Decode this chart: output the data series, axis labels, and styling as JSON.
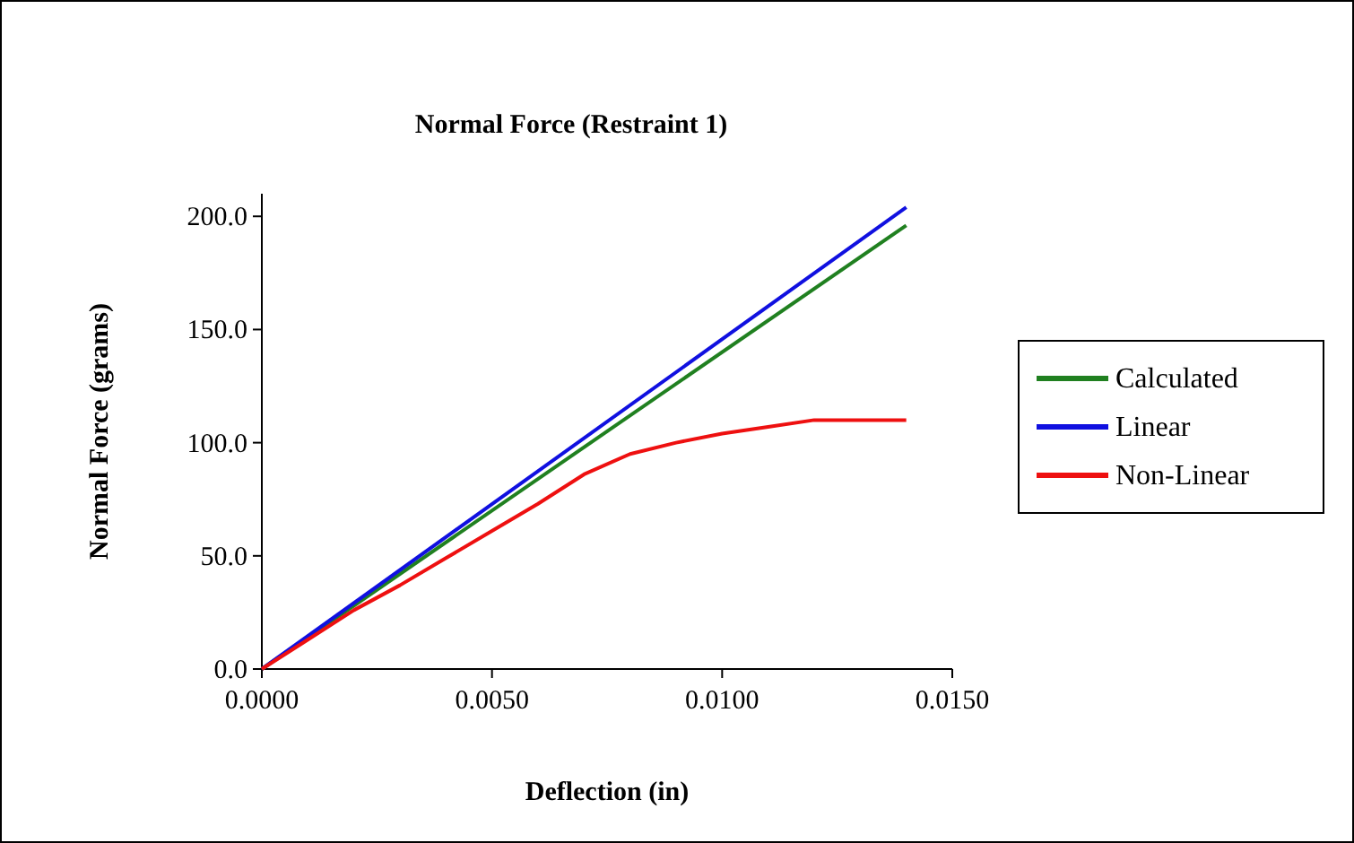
{
  "chart_data": {
    "type": "line",
    "title": "Normal Force (Restraint 1)",
    "xlabel": "Deflection (in)",
    "ylabel": "Normal Force (grams)",
    "xlim": [
      0,
      0.015
    ],
    "xticks": [
      {
        "value": 0,
        "label": "0.0000"
      },
      {
        "value": 0.005,
        "label": "0.0050"
      },
      {
        "value": 0.01,
        "label": "0.0100"
      },
      {
        "value": 0.015,
        "label": "0.0150"
      }
    ],
    "ylim": [
      0,
      210
    ],
    "yticks": [
      {
        "value": 0,
        "label": "0.0"
      },
      {
        "value": 50,
        "label": "50.0"
      },
      {
        "value": 100,
        "label": "100.0"
      },
      {
        "value": 150,
        "label": "150.0"
      },
      {
        "value": 200,
        "label": "200.0"
      }
    ],
    "grid": false,
    "legend": "right",
    "marker": "none",
    "line_style": "solid",
    "series": [
      {
        "name": "Calculated",
        "color": "#208020",
        "x": [
          0,
          0.014
        ],
        "values": [
          0,
          196
        ]
      },
      {
        "name": "Linear",
        "color": "#1010e0",
        "x": [
          0,
          0.014
        ],
        "values": [
          0,
          204
        ]
      },
      {
        "name": "Non-Linear",
        "color": "#ee1010",
        "x": [
          0,
          0.001,
          0.002,
          0.003,
          0.004,
          0.005,
          0.006,
          0.007,
          0.008,
          0.009,
          0.01,
          0.011,
          0.012,
          0.013,
          0.014
        ],
        "values": [
          0,
          13,
          26,
          37,
          49,
          61,
          73,
          86,
          95,
          100,
          104,
          107,
          110,
          110,
          110
        ]
      }
    ]
  }
}
